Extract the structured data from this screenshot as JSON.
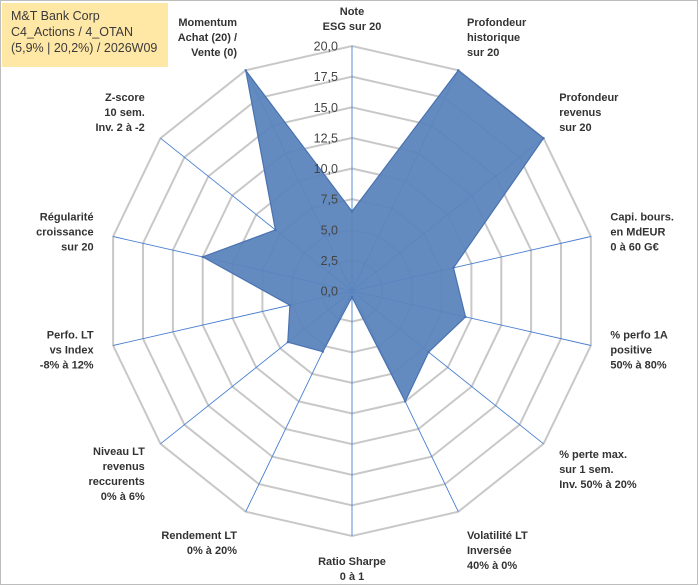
{
  "header": {
    "line1": "M&T Bank Corp",
    "line2": "C4_Actions / 4_OTAN",
    "line3": "(5,9% | 20,2%) / 2026W09"
  },
  "colors": {
    "fill": "#5b85bd",
    "stroke": "#4a72b0",
    "spoke": "#4a7fd0",
    "grid": "#c8c8c8",
    "title_bg": "#ffe7a6"
  },
  "chart_data": {
    "type": "radar",
    "title": "",
    "rmax": 20,
    "tick_values": [
      0,
      2.5,
      5,
      7.5,
      10,
      12.5,
      15,
      17.5,
      20
    ],
    "tick_labels": [
      "0,0",
      "2,5",
      "5,0",
      "7,5",
      "10,0",
      "12,5",
      "15,0",
      "17,5",
      "20,0"
    ],
    "axes": [
      {
        "lines": [
          "Note",
          "ESG sur 20"
        ]
      },
      {
        "lines": [
          "Profondeur",
          "historique",
          "sur 20"
        ]
      },
      {
        "lines": [
          "Profondeur",
          "revenus",
          "sur 20"
        ]
      },
      {
        "lines": [
          "Capi. bours.",
          "en MdEUR",
          "0 à 60 G€"
        ]
      },
      {
        "lines": [
          "% perfo 1A",
          "positive",
          "50% à 80%"
        ]
      },
      {
        "lines": [
          "% perte max.",
          "sur 1 sem.",
          "Inv. 50% à 20%"
        ]
      },
      {
        "lines": [
          "Volatilité LT",
          "Inversée",
          "40% à 0%"
        ]
      },
      {
        "lines": [
          "Ratio Sharpe",
          "0 à 1"
        ]
      },
      {
        "lines": [
          "Rendement LT",
          "0% à 20%"
        ]
      },
      {
        "lines": [
          "Niveau LT",
          "revenus",
          "reccurents",
          "0% à 6%"
        ]
      },
      {
        "lines": [
          "Perfo. LT",
          "vs Index",
          "-8% à 12%"
        ]
      },
      {
        "lines": [
          "Régularité",
          "croissance",
          "sur 20"
        ]
      },
      {
        "lines": [
          "Z-score",
          "10 sem.",
          "Inv. 2 à -2"
        ]
      },
      {
        "lines": [
          "Momentum",
          "Achat (20) /",
          "Vente (0)"
        ]
      }
    ],
    "series": [
      {
        "values": [
          6.5,
          20,
          20,
          8.5,
          9.5,
          8.0,
          10.0,
          0.5,
          5.5,
          6.7,
          5.2,
          12.5,
          8.0,
          20
        ]
      }
    ]
  }
}
